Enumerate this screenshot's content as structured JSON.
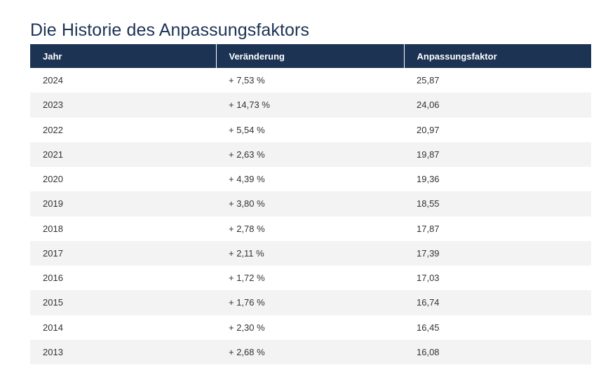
{
  "title": "Die Historie des Anpassungsfaktors",
  "table": {
    "headers": [
      "Jahr",
      "Veränderung",
      "Anpassungsfaktor"
    ],
    "rows": [
      [
        "2024",
        "+ 7,53 %",
        "25,87"
      ],
      [
        "2023",
        "+ 14,73 %",
        "24,06"
      ],
      [
        "2022",
        "+ 5,54 %",
        "20,97"
      ],
      [
        "2021",
        "+ 2,63 %",
        "19,87"
      ],
      [
        "2020",
        "+ 4,39 %",
        "19,36"
      ],
      [
        "2019",
        "+ 3,80 %",
        "18,55"
      ],
      [
        "2018",
        "+ 2,78 %",
        "17,87"
      ],
      [
        "2017",
        "+ 2,11 %",
        "17,39"
      ],
      [
        "2016",
        "+ 1,72 %",
        "17,03"
      ],
      [
        "2015",
        "+ 1,76 %",
        "16,74"
      ],
      [
        "2014",
        "+ 2,30 %",
        "16,45"
      ],
      [
        "2013",
        "+ 2,68 %",
        "16,08"
      ]
    ]
  },
  "colors": {
    "header_bg": "#1c3354",
    "title": "#1c3354",
    "stripe": "#f3f3f3"
  }
}
